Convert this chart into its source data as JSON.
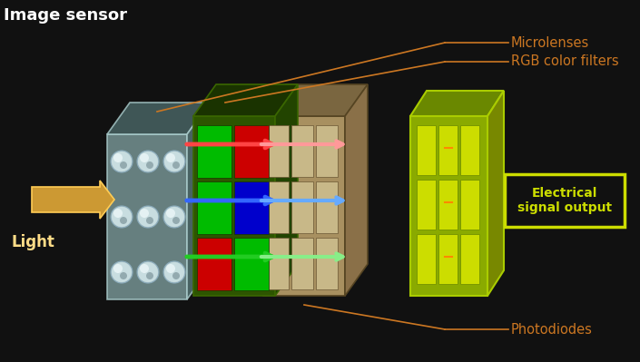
{
  "bg_color": "#111111",
  "title_text": "Image sensor",
  "title_color": "#ffffff",
  "title_fontsize": 13,
  "orange_color": "#c87020",
  "label_color": "#cc7722",
  "label_microlenses": "Microlenses",
  "label_rgb": "RGB color filters",
  "label_photodiodes": "Photodiodes",
  "label_light": "Light",
  "label_electrical": "Electrical\nsignal output",
  "lens_face": "#7a9898",
  "lens_top": "#4a6666",
  "lens_right": "#557575",
  "lens_edge": "#aacccc",
  "green_face": "#3a6600",
  "green_top": "#1e3d00",
  "green_edge": "#4a7a00",
  "tan_face": "#b8a878",
  "tan_top": "#8a7a55",
  "tan_edge": "#665533",
  "out_face": "#9ab800",
  "out_top": "#6a8800",
  "out_right": "#7a9800",
  "out_edge": "#c8e000",
  "out_cell": "#ccdd00",
  "cell_r": "#cc0000",
  "cell_g": "#00cc00",
  "cell_b": "#0000cc",
  "arrow_orange": "#cc9933",
  "arrow_orange_edge": "#ffcc66",
  "light_text": "#ffdd88",
  "elec_border": "#ccdd00",
  "elec_text": "#ccdd00"
}
